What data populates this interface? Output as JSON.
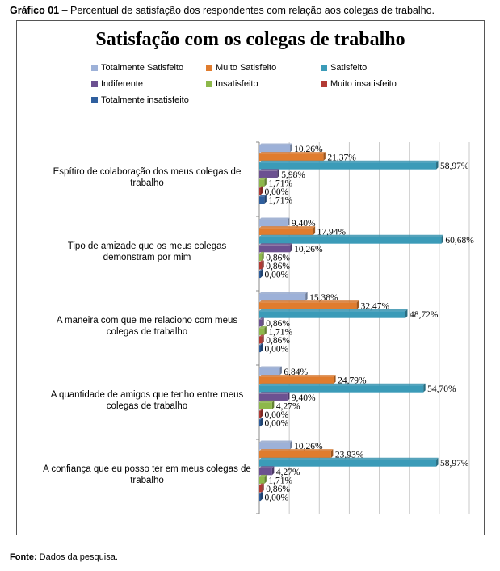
{
  "caption": {
    "bold": "Gráfico 01",
    "text": " – Percentual de satisfação dos respondentes com relação aos colegas de trabalho."
  },
  "source": {
    "bold": "Fonte:",
    "text": " Dados da pesquisa."
  },
  "chart_data": {
    "type": "bar",
    "orientation": "horizontal",
    "title": "Satisfação com os colegas de trabalho",
    "categories": [
      "Espítiro de colaboração dos meus colegas de trabalho",
      "Tipo de amizade que os meus colegas demonstram por mim",
      "A maneira com que me relaciono com meus colegas de trabalho",
      "A quantidade de amigos que tenho entre meus colegas de trabalho",
      "A confiança que eu posso ter em meus colegas de trabalho"
    ],
    "series": [
      {
        "name": "Totalmente Satisfeito",
        "color": "#9db1d8",
        "values": [
          10.26,
          9.4,
          15.38,
          6.84,
          10.26
        ],
        "labels": [
          "10,26%",
          "9,40%",
          "15,38%",
          "6,84%",
          "10,26%"
        ]
      },
      {
        "name": "Muito Satisfeito",
        "color": "#e07c2e",
        "values": [
          21.37,
          17.94,
          32.47,
          24.79,
          23.93
        ],
        "labels": [
          "21,37%",
          "17,94%",
          "32,47%",
          "24,79%",
          "23,93%"
        ]
      },
      {
        "name": "Satisfeito",
        "color": "#3b9bb8",
        "values": [
          58.97,
          60.68,
          48.72,
          54.7,
          58.97
        ],
        "labels": [
          "58,97%",
          "60,68%",
          "48,72%",
          "54,70%",
          "58,97%"
        ]
      },
      {
        "name": "Indiferente",
        "color": "#6c5191",
        "values": [
          5.98,
          10.26,
          0.86,
          9.4,
          4.27
        ],
        "labels": [
          "5,98%",
          "10,26%",
          "0,86%",
          "9,40%",
          "4,27%"
        ]
      },
      {
        "name": "Insatisfeito",
        "color": "#8db84a",
        "values": [
          1.71,
          0.86,
          1.71,
          4.27,
          1.71
        ],
        "labels": [
          "1,71%",
          "0,86%",
          "1,71%",
          "4,27%",
          "1,71%"
        ]
      },
      {
        "name": "Muito insatisfeito",
        "color": "#b23a34",
        "values": [
          0.0,
          0.86,
          0.86,
          0.0,
          0.86
        ],
        "labels": [
          "0,00%",
          "0,86%",
          "0,86%",
          "0,00%",
          "0,86%"
        ]
      },
      {
        "name": "Totalmente insatisfeito",
        "color": "#2f5f9e",
        "values": [
          1.71,
          0.0,
          0.0,
          0.0,
          0.0
        ],
        "labels": [
          "1,71%",
          "0,00%",
          "0,00%",
          "0,00%",
          "0,00%"
        ]
      }
    ],
    "xlim": [
      0,
      70
    ],
    "grid": true,
    "legend_position": "top"
  }
}
